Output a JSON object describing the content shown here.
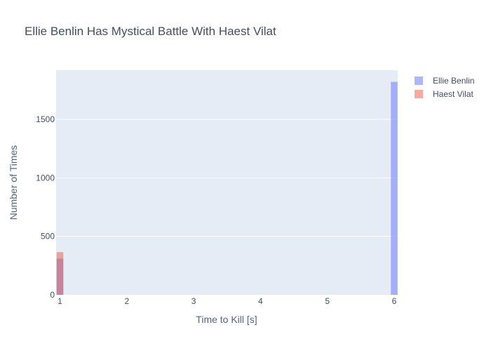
{
  "chart_data": {
    "type": "bar",
    "title": "Ellie Benlin Has Mystical Battle With Haest Vilat",
    "xlabel": "Time to Kill [s]",
    "ylabel": "Number of Times",
    "xlim": [
      1,
      6
    ],
    "ylim": [
      0,
      1920
    ],
    "x_ticks": [
      "1",
      "2",
      "3",
      "4",
      "5",
      "6"
    ],
    "y_ticks": [
      "0",
      "500",
      "1000",
      "1500"
    ],
    "bin_width": 0.1,
    "series": [
      {
        "name": "Ellie Benlin",
        "color": "#636efa",
        "bins": [
          {
            "x": 1.0,
            "count": 310
          },
          {
            "x": 6.0,
            "count": 1820
          }
        ]
      },
      {
        "name": "Haest Vilat",
        "color": "#ef553b",
        "bins": [
          {
            "x": 1.0,
            "count": 365
          }
        ]
      }
    ],
    "legend_position": "top-right",
    "grid": true
  }
}
